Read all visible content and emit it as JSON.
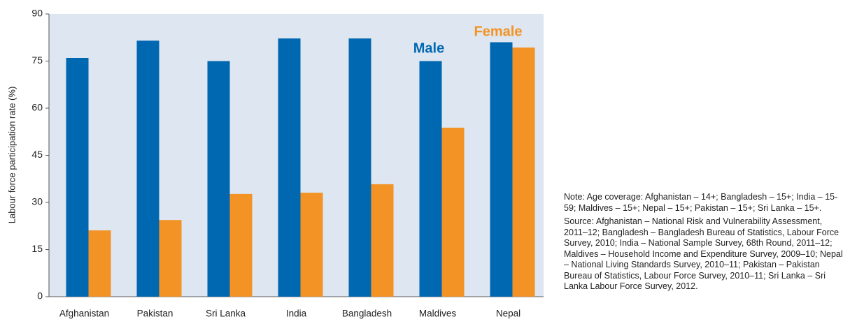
{
  "chart_data": {
    "type": "bar",
    "y_label": "Labour force participation rate (%)",
    "categories": [
      "Afghanistan",
      "Pakistan",
      "Sri Lanka",
      "India",
      "Bangladesh",
      "Maldives",
      "Nepal"
    ],
    "series": [
      {
        "name": "Male",
        "color": "#0067b1",
        "values": [
          76,
          81.5,
          75,
          82.2,
          82.2,
          75,
          81
        ]
      },
      {
        "name": "Female",
        "color": "#f39325",
        "values": [
          21.1,
          24.4,
          32.7,
          33.1,
          35.8,
          53.8,
          79.3
        ]
      }
    ],
    "ylim": [
      0,
      90
    ],
    "yticks": [
      0,
      15,
      30,
      45,
      60,
      75,
      90
    ],
    "grid": false,
    "background": "#dde6f1",
    "legend": "top-right",
    "notes": [
      "Note: Age coverage: Afghanistan – 14+; Bangladesh – 15+; India – 15-59; Maldives – 15+; Nepal – 15+; Pakistan – 15+; Sri Lanka – 15+.",
      "Source: Afghanistan – National Risk and Vulnerability Assessment, 2011–12; Bangladesh – Bangladesh Bureau of Statistics, Labour Force Survey, 2010; India – National Sample Survey, 68th Round, 2011–12; Maldives – Household Income and Expenditure Survey, 2009–10; Nepal – National Living Standards Survey, 2010–11; Pakistan – Pakistan Bureau of Statistics, Labour Force Survey, 2010–11; Sri Lanka – Sri Lanka Labour Force Survey, 2012."
    ]
  }
}
